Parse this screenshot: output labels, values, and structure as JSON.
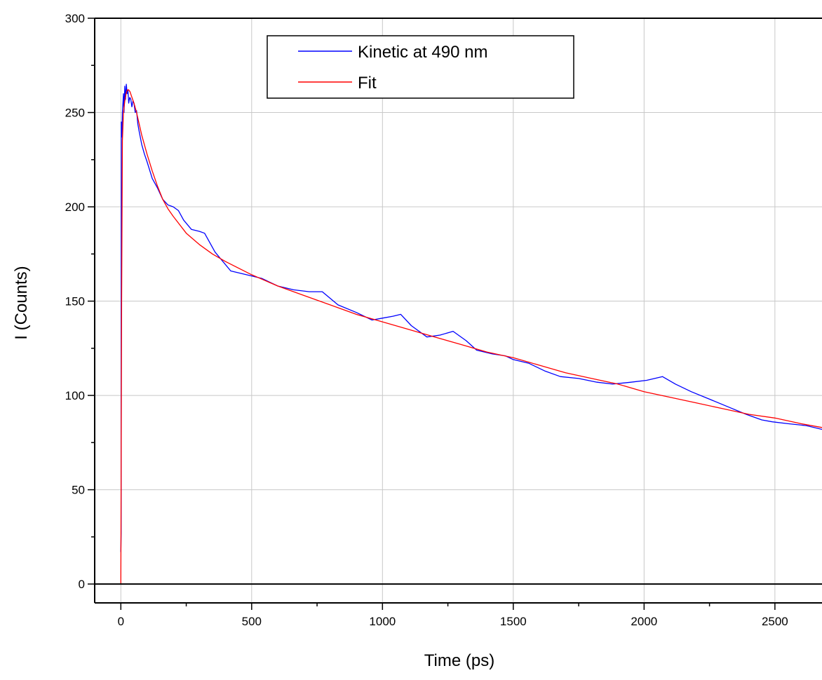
{
  "chart_data": {
    "type": "line",
    "xlabel": "Time (ps)",
    "ylabel": "I (Counts)",
    "xlim": [
      -100,
      2680
    ],
    "ylim": [
      -10,
      300
    ],
    "xticks": [
      0,
      500,
      1000,
      1500,
      2000,
      2500
    ],
    "yticks": [
      0,
      50,
      100,
      150,
      200,
      250,
      300
    ],
    "grid": true,
    "legend_position": "top-center",
    "series": [
      {
        "name": "Kinetic at 490 nm",
        "color": "#0000ff",
        "x": [
          0,
          1,
          2,
          4,
          6,
          8,
          10,
          12,
          15,
          18,
          21,
          24,
          27,
          30,
          34,
          38,
          42,
          46,
          50,
          55,
          60,
          65,
          70,
          80,
          90,
          100,
          120,
          140,
          160,
          180,
          200,
          220,
          240,
          270,
          300,
          320,
          360,
          420,
          480,
          540,
          600,
          660,
          720,
          770,
          830,
          900,
          960,
          1000,
          1040,
          1070,
          1110,
          1170,
          1220,
          1270,
          1320,
          1360,
          1420,
          1470,
          1500,
          1560,
          1620,
          1680,
          1750,
          1820,
          1880,
          1950,
          2010,
          2070,
          2120,
          2180,
          2250,
          2320,
          2390,
          2450,
          2490,
          2550,
          2620,
          2680
        ],
        "y": [
          17,
          27,
          245,
          237,
          250,
          255,
          260,
          250,
          264,
          257,
          265,
          260,
          262,
          255,
          258,
          257,
          253,
          256,
          255,
          250,
          251,
          244,
          240,
          233,
          228,
          224,
          215,
          210,
          204,
          201,
          200,
          198,
          193,
          188,
          187,
          186,
          176,
          166,
          164,
          162,
          158,
          156,
          155,
          155,
          148,
          144,
          140,
          141,
          142,
          143,
          137,
          131,
          132,
          134,
          129,
          124,
          122,
          121,
          119,
          117,
          113,
          110,
          109,
          107,
          106,
          107,
          108,
          110,
          106,
          102,
          98,
          94,
          90,
          87,
          86,
          85,
          84,
          82
        ]
      },
      {
        "name": "Fit",
        "color": "#ff0000",
        "x": [
          0,
          3,
          6,
          10,
          15,
          20,
          25,
          30,
          35,
          40,
          50,
          60,
          70,
          80,
          100,
          120,
          140,
          160,
          180,
          200,
          250,
          300,
          350,
          400,
          500,
          600,
          700,
          800,
          900,
          1000,
          1100,
          1200,
          1300,
          1400,
          1500,
          1600,
          1700,
          1800,
          1900,
          2000,
          2100,
          2200,
          2300,
          2400,
          2500,
          2600,
          2680
        ],
        "y": [
          0,
          150,
          235,
          250,
          256,
          260,
          262,
          262,
          261,
          259,
          255,
          250,
          244,
          238,
          228,
          219,
          211,
          204,
          199,
          195,
          186,
          180,
          175,
          171,
          164,
          158,
          153,
          148,
          143,
          139,
          135,
          131,
          127,
          123,
          120,
          116,
          112,
          109,
          106,
          102,
          99,
          96,
          93,
          90,
          88,
          85,
          83
        ]
      }
    ]
  }
}
